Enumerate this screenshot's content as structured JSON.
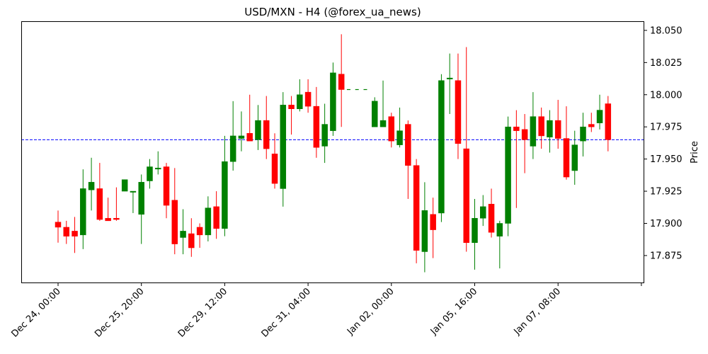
{
  "chart_data": {
    "type": "candlestick",
    "title": "USD/MXN - H4 (@forex_ua_news)",
    "xlabel": "",
    "ylabel": "Price",
    "ylim": [
      17.8535,
      18.0571
    ],
    "grid": false,
    "legend": null,
    "y_ticks": [
      17.875,
      17.9,
      17.925,
      17.95,
      17.975,
      18.0,
      18.025,
      18.05
    ],
    "y_tick_labels": [
      "17.875",
      "17.900",
      "17.925",
      "17.950",
      "17.975",
      "18.000",
      "18.025",
      "18.050"
    ],
    "x_tick_labels": [
      "Dec 24, 00:00",
      "Dec 25, 20:00",
      "Dec 29, 12:00",
      "Dec 31, 04:00",
      "Jan 02, 00:00",
      "Jan 05, 16:00",
      "Jan 07, 08:00",
      ""
    ],
    "x_tick_indices": [
      0,
      10,
      20,
      30,
      40,
      50,
      60,
      70
    ],
    "reference_line": {
      "price": 17.965,
      "color": "#0000ff",
      "style": "dashed"
    },
    "up_color": "#008000",
    "down_color": "#ff0000",
    "candles": [
      {
        "o": 17.901,
        "h": 17.91,
        "l": 17.885,
        "c": 17.897
      },
      {
        "o": 17.897,
        "h": 17.902,
        "l": 17.884,
        "c": 17.89
      },
      {
        "o": 17.894,
        "h": 17.905,
        "l": 17.877,
        "c": 17.89
      },
      {
        "o": 17.891,
        "h": 17.942,
        "l": 17.88,
        "c": 17.927
      },
      {
        "o": 17.926,
        "h": 17.951,
        "l": 17.91,
        "c": 17.932
      },
      {
        "o": 17.927,
        "h": 17.947,
        "l": 17.902,
        "c": 17.903
      },
      {
        "o": 17.904,
        "h": 17.92,
        "l": 17.902,
        "c": 17.902
      },
      {
        "o": 17.904,
        "h": 17.928,
        "l": 17.902,
        "c": 17.903
      },
      {
        "o": 17.925,
        "h": 17.934,
        "l": 17.925,
        "c": 17.934
      },
      {
        "o": 17.925,
        "h": 17.925,
        "l": 17.908,
        "c": 17.925
      },
      {
        "o": 17.907,
        "h": 17.938,
        "l": 17.884,
        "c": 17.932
      },
      {
        "o": 17.933,
        "h": 17.95,
        "l": 17.927,
        "c": 17.944
      },
      {
        "o": 17.943,
        "h": 17.956,
        "l": 17.938,
        "c": 17.943
      },
      {
        "o": 17.944,
        "h": 17.947,
        "l": 17.904,
        "c": 17.914
      },
      {
        "o": 17.918,
        "h": 17.943,
        "l": 17.876,
        "c": 17.884
      },
      {
        "o": 17.889,
        "h": 17.911,
        "l": 17.876,
        "c": 17.894
      },
      {
        "o": 17.892,
        "h": 17.904,
        "l": 17.874,
        "c": 17.881
      },
      {
        "o": 17.897,
        "h": 17.9,
        "l": 17.881,
        "c": 17.891
      },
      {
        "o": 17.891,
        "h": 17.921,
        "l": 17.886,
        "c": 17.912
      },
      {
        "o": 17.913,
        "h": 17.925,
        "l": 17.888,
        "c": 17.896
      },
      {
        "o": 17.896,
        "h": 17.968,
        "l": 17.89,
        "c": 17.948
      },
      {
        "o": 17.948,
        "h": 17.995,
        "l": 17.941,
        "c": 17.968
      },
      {
        "o": 17.966,
        "h": 17.987,
        "l": 17.956,
        "c": 17.968
      },
      {
        "o": 17.97,
        "h": 18.0,
        "l": 17.964,
        "c": 17.964
      },
      {
        "o": 17.965,
        "h": 17.992,
        "l": 17.957,
        "c": 17.98
      },
      {
        "o": 17.98,
        "h": 17.999,
        "l": 17.95,
        "c": 17.958
      },
      {
        "o": 17.954,
        "h": 17.97,
        "l": 17.927,
        "c": 17.931
      },
      {
        "o": 17.927,
        "h": 18.002,
        "l": 17.913,
        "c": 17.992
      },
      {
        "o": 17.992,
        "h": 17.999,
        "l": 17.969,
        "c": 17.989
      },
      {
        "o": 17.989,
        "h": 18.012,
        "l": 17.987,
        "c": 18.0
      },
      {
        "o": 18.002,
        "h": 18.012,
        "l": 17.986,
        "c": 17.991
      },
      {
        "o": 17.991,
        "h": 18.006,
        "l": 17.951,
        "c": 17.959
      },
      {
        "o": 17.96,
        "h": 17.993,
        "l": 17.947,
        "c": 17.977
      },
      {
        "o": 17.972,
        "h": 18.025,
        "l": 17.968,
        "c": 18.017
      },
      {
        "o": 18.016,
        "h": 18.047,
        "l": 17.975,
        "c": 18.004
      },
      {
        "o": 18.004,
        "h": 18.004,
        "l": 18.004,
        "c": 18.004
      },
      {
        "o": 18.004,
        "h": 18.004,
        "l": 18.004,
        "c": 18.004
      },
      {
        "o": 18.004,
        "h": 18.004,
        "l": 18.004,
        "c": 18.004
      },
      {
        "o": 17.975,
        "h": 17.998,
        "l": 17.975,
        "c": 17.995
      },
      {
        "o": 17.975,
        "h": 18.011,
        "l": 17.975,
        "c": 17.98
      },
      {
        "o": 17.983,
        "h": 17.986,
        "l": 17.959,
        "c": 17.964
      },
      {
        "o": 17.961,
        "h": 17.99,
        "l": 17.959,
        "c": 17.972
      },
      {
        "o": 17.977,
        "h": 17.98,
        "l": 17.919,
        "c": 17.945
      },
      {
        "o": 17.945,
        "h": 17.95,
        "l": 17.869,
        "c": 17.879
      },
      {
        "o": 17.878,
        "h": 17.932,
        "l": 17.862,
        "c": 17.91
      },
      {
        "o": 17.907,
        "h": 17.92,
        "l": 17.873,
        "c": 17.895
      },
      {
        "o": 17.908,
        "h": 18.016,
        "l": 17.901,
        "c": 18.011
      },
      {
        "o": 18.013,
        "h": 18.032,
        "l": 17.985,
        "c": 18.013
      },
      {
        "o": 18.011,
        "h": 18.032,
        "l": 17.95,
        "c": 17.962
      },
      {
        "o": 17.958,
        "h": 18.037,
        "l": 17.878,
        "c": 17.885
      },
      {
        "o": 17.885,
        "h": 17.919,
        "l": 17.864,
        "c": 17.904
      },
      {
        "o": 17.904,
        "h": 17.922,
        "l": 17.898,
        "c": 17.913
      },
      {
        "o": 17.915,
        "h": 17.927,
        "l": 17.889,
        "c": 17.893
      },
      {
        "o": 17.89,
        "h": 17.902,
        "l": 17.865,
        "c": 17.9
      },
      {
        "o": 17.9,
        "h": 17.983,
        "l": 17.89,
        "c": 17.975
      },
      {
        "o": 17.975,
        "h": 17.988,
        "l": 17.912,
        "c": 17.972
      },
      {
        "o": 17.973,
        "h": 17.985,
        "l": 17.939,
        "c": 17.965
      },
      {
        "o": 17.96,
        "h": 18.002,
        "l": 17.95,
        "c": 17.983
      },
      {
        "o": 17.983,
        "h": 17.99,
        "l": 17.958,
        "c": 17.968
      },
      {
        "o": 17.967,
        "h": 17.988,
        "l": 17.955,
        "c": 17.98
      },
      {
        "o": 17.98,
        "h": 17.996,
        "l": 17.958,
        "c": 17.966
      },
      {
        "o": 17.966,
        "h": 17.991,
        "l": 17.934,
        "c": 17.936
      },
      {
        "o": 17.941,
        "h": 17.972,
        "l": 17.93,
        "c": 17.961
      },
      {
        "o": 17.964,
        "h": 17.986,
        "l": 17.952,
        "c": 17.975
      },
      {
        "o": 17.977,
        "h": 17.986,
        "l": 17.971,
        "c": 17.975
      },
      {
        "o": 17.978,
        "h": 18.0,
        "l": 17.973,
        "c": 17.988
      },
      {
        "o": 17.993,
        "h": 17.999,
        "l": 17.956,
        "c": 17.965
      }
    ]
  }
}
